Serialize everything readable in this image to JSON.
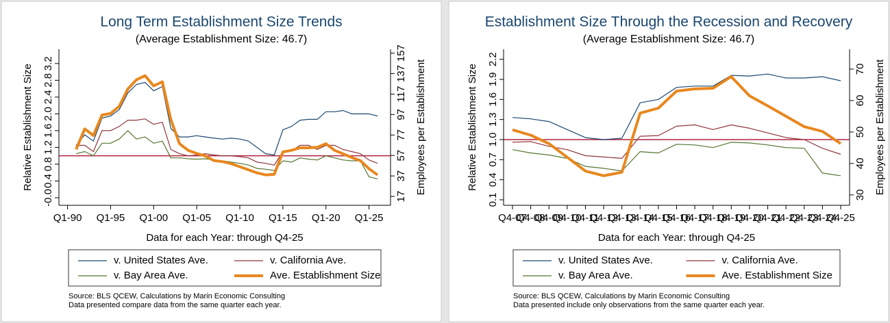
{
  "chart_data": [
    {
      "type": "line",
      "title": "Long Term Establishment Size Trends",
      "subtitle": "(Average Establishment Size: 46.7)",
      "x_label": "Data for each Year: through Q4-25",
      "y_label": "Relative Establishment Size",
      "y2_label": "Employees per Establishment",
      "x": [
        1991,
        1992,
        1993,
        1994,
        1995,
        1996,
        1997,
        1998,
        1999,
        2000,
        2001,
        2002,
        2003,
        2004,
        2005,
        2006,
        2007,
        2008,
        2009,
        2010,
        2011,
        2012,
        2013,
        2014,
        2015,
        2016,
        2017,
        2018,
        2019,
        2020,
        2021,
        2022,
        2023,
        2024,
        2025,
        2026
      ],
      "xlim": [
        1989,
        2027.5
      ],
      "xticks": [
        {
          "value": 1990,
          "label": "Q1-90"
        },
        {
          "value": 1995,
          "label": "Q1-95"
        },
        {
          "value": 2000,
          "label": "Q1-00"
        },
        {
          "value": 2005,
          "label": "Q1-05"
        },
        {
          "value": 2010,
          "label": "Q1-10"
        },
        {
          "value": 2015,
          "label": "Q1-15"
        },
        {
          "value": 2020,
          "label": "Q1-20"
        },
        {
          "value": 2025,
          "label": "Q1-25"
        }
      ],
      "ylim": [
        -0.18,
        3.54
      ],
      "yticks": [
        {
          "value": 0,
          "label": "-0.0"
        },
        0.4,
        0.8,
        1.2,
        1.6,
        {
          "value": 2,
          "label": "2.0"
        },
        2.4,
        2.8,
        3.2
      ],
      "y2lim": [
        8.3,
        160.8
      ],
      "y2ticks": [
        17,
        37,
        57,
        77,
        97,
        117,
        137,
        157
      ],
      "hline": {
        "value": 1,
        "color": "#b2213f"
      },
      "series": [
        {
          "name": "v. United States Ave.",
          "color": "#1a476f",
          "width": 1.2,
          "values": [
            1.25,
            1.5,
            1.35,
            1.9,
            1.95,
            2.1,
            2.5,
            2.7,
            2.75,
            2.55,
            2.65,
            1.65,
            1.45,
            1.45,
            1.48,
            1.45,
            1.42,
            1.4,
            1.42,
            1.4,
            1.35,
            1.2,
            1.05,
            1.02,
            1.62,
            1.7,
            1.85,
            1.87,
            1.87,
            2.05,
            2.05,
            2.08,
            2.0,
            2.0,
            2.0,
            1.95
          ]
        },
        {
          "name": "v. California Ave.",
          "color": "#90353b",
          "width": 1.2,
          "values": [
            1.25,
            1.25,
            1.1,
            1.6,
            1.6,
            1.7,
            1.85,
            1.85,
            1.88,
            1.75,
            1.8,
            1.15,
            1.05,
            1.0,
            1.02,
            1.05,
            1.02,
            1.0,
            1.0,
            0.98,
            0.95,
            0.85,
            0.82,
            0.78,
            1.1,
            1.12,
            1.25,
            1.25,
            1.15,
            1.25,
            1.25,
            1.15,
            1.1,
            1.05,
            0.9,
            0.82
          ]
        },
        {
          "name": "v. Bay Area Ave.",
          "color": "#55752f",
          "width": 1.2,
          "values": [
            1.05,
            1.1,
            1.0,
            1.3,
            1.3,
            1.4,
            1.6,
            1.4,
            1.45,
            1.3,
            1.35,
            0.95,
            0.95,
            0.93,
            0.92,
            0.93,
            0.9,
            0.88,
            0.85,
            0.82,
            0.78,
            0.7,
            0.68,
            0.65,
            0.88,
            0.85,
            0.95,
            0.92,
            0.9,
            1.0,
            0.95,
            0.9,
            0.88,
            0.88,
            0.5,
            0.45
          ]
        },
        {
          "name": "Ave. Establishment Size",
          "color": "#e8871e",
          "width": 4,
          "axis": "y2",
          "values": [
            63,
            83,
            76.5,
            96.6,
            98,
            105,
            122,
            131,
            135,
            125,
            129,
            92,
            68.5,
            62,
            59,
            56.5,
            52,
            51,
            49,
            46,
            43,
            40,
            38,
            38.5,
            60.5,
            62,
            64.5,
            64.5,
            65,
            68.5,
            62,
            58.5,
            55,
            52,
            44,
            38
          ]
        }
      ],
      "source": "Source: BLS QCEW, Calculations by Marin Economic Consulting",
      "note": "Data presented compare data from the same quarter each year."
    },
    {
      "type": "line",
      "title": "Establishment Size Through the Recession and Recovery",
      "subtitle": "(Average Establishment Size: 46.7)",
      "x_label": "Data for each Year: through Q4-25",
      "y_label": "Relative Establishment Size",
      "y2_label": "Employees per Establishment",
      "categories": [
        "Q4-07",
        "Q4-08",
        "Q4-09",
        "Q4-10",
        "Q4-11",
        "Q4-12",
        "Q4-13",
        "Q4-14",
        "Q4-15",
        "Q4-16",
        "Q4-17",
        "Q4-18",
        "Q4-19",
        "Q4-20",
        "Q4-21",
        "Q4-22",
        "Q4-23",
        "Q4-24",
        "Q4-25"
      ],
      "ylim": [
        0.018,
        2.35
      ],
      "yticks": [
        0.1,
        0.4,
        0.7,
        {
          "value": 1,
          "label": "1.0"
        },
        1.3,
        1.6,
        1.9,
        2.2
      ],
      "y2lim": [
        26.7,
        76.3
      ],
      "y2ticks": [
        30,
        40,
        50,
        60,
        70
      ],
      "hline": {
        "value": 1,
        "color": "#b2213f"
      },
      "series": [
        {
          "name": "v. United States Ave.",
          "color": "#1a476f",
          "width": 1.2,
          "values": [
            1.33,
            1.31,
            1.27,
            1.15,
            1.03,
            1.0,
            1.02,
            1.55,
            1.6,
            1.78,
            1.8,
            1.8,
            1.96,
            1.95,
            1.98,
            1.92,
            1.92,
            1.94,
            1.88
          ]
        },
        {
          "name": "v. California Ave.",
          "color": "#90353b",
          "width": 1.2,
          "values": [
            0.96,
            0.97,
            0.9,
            0.85,
            0.76,
            0.74,
            0.72,
            1.05,
            1.06,
            1.2,
            1.22,
            1.15,
            1.22,
            1.17,
            1.1,
            1.03,
            1.0,
            0.87,
            0.78
          ]
        },
        {
          "name": "v. Bay Area Ave.",
          "color": "#55752f",
          "width": 1.2,
          "values": [
            0.85,
            0.8,
            0.77,
            0.72,
            0.6,
            0.57,
            0.53,
            0.82,
            0.8,
            0.93,
            0.92,
            0.88,
            0.96,
            0.95,
            0.92,
            0.88,
            0.87,
            0.5,
            0.46
          ]
        },
        {
          "name": "Ave. Establishment Size",
          "color": "#e8871e",
          "width": 4,
          "axis": "y2",
          "values": [
            50.7,
            49,
            46.3,
            42,
            37.6,
            36.1,
            37.2,
            56,
            57.6,
            63,
            63.7,
            63.9,
            67.6,
            61.5,
            58.3,
            55,
            51.7,
            50.2,
            46.3
          ]
        }
      ],
      "source": "Source: BLS QCEW, Calculations by Marin Economic Consulting",
      "note": "Data presented include only observations from the same quarter each year."
    }
  ]
}
